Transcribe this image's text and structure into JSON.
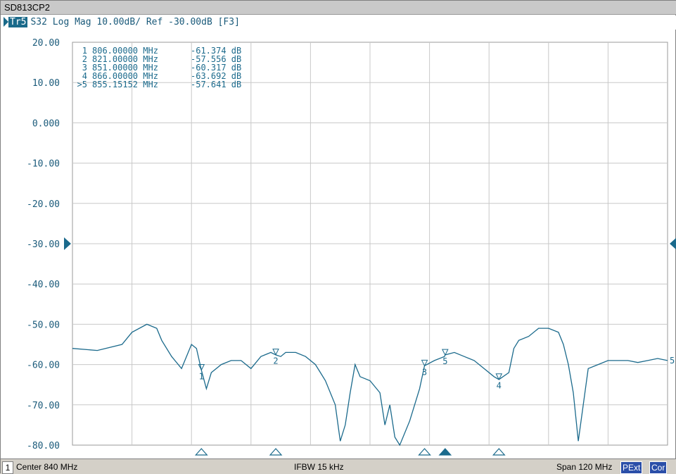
{
  "window": {
    "title": "SD813CP2"
  },
  "trace": {
    "badge": "Tr5",
    "header": "S32 Log Mag 10.00dB/ Ref -30.00dB [F3]"
  },
  "chart_data": {
    "type": "line",
    "title": "",
    "xlabel": "",
    "ylabel": "",
    "x_unit": "MHz",
    "y_unit": "dB",
    "xlim": [
      780,
      900
    ],
    "ylim": [
      -80,
      20
    ],
    "y_ticks": [
      "20.00",
      "10.00",
      "0.000",
      "-10.00",
      "-20.00",
      "-30.00",
      "-40.00",
      "-50.00",
      "-60.00",
      "-70.00",
      "-80.00"
    ],
    "reference_level": -30,
    "grid": true,
    "trace_color": "#1b6a8c",
    "series": [
      {
        "x": [
          780,
          785,
          790,
          792,
          795,
          797,
          798,
          800,
          802,
          804,
          805,
          806,
          807,
          808,
          810,
          812,
          814,
          816,
          818,
          820,
          821,
          822,
          823,
          825,
          827,
          829,
          830,
          831,
          833,
          834,
          835,
          836,
          837,
          838,
          840,
          842,
          843,
          844,
          845,
          846,
          848,
          850,
          851,
          853,
          855,
          855.15,
          857,
          859,
          861,
          863,
          865,
          866,
          868,
          869,
          870,
          872,
          874,
          876,
          878,
          879,
          880,
          881,
          882,
          884,
          886,
          888,
          890,
          892,
          894,
          896,
          898,
          900
        ],
        "y": [
          -56,
          -56.5,
          -55,
          -52,
          -50,
          -51,
          -54,
          -58,
          -61,
          -55,
          -56,
          -61.4,
          -66,
          -62,
          -60,
          -59,
          -59,
          -61,
          -58,
          -57,
          -57.6,
          -58,
          -57,
          -57,
          -58,
          -60,
          -62,
          -64,
          -70,
          -79,
          -75,
          -67,
          -60,
          -63,
          -64,
          -67,
          -75,
          -70,
          -78,
          -80,
          -74,
          -66,
          -60.3,
          -59,
          -58,
          -57.6,
          -57,
          -58,
          -59,
          -61,
          -63,
          -63.7,
          -62,
          -56,
          -54,
          -53,
          -51,
          -51,
          -52,
          -55,
          -60,
          -67,
          -79,
          -61,
          -60,
          -59,
          -59,
          -59,
          -59.5,
          -59,
          -58.5,
          -59
        ]
      }
    ],
    "markers": [
      {
        "label": "1",
        "freq": "806.00000 MHz",
        "value": "-61.374 dB",
        "x": 806,
        "y": -61.374,
        "active": false
      },
      {
        "label": "2",
        "freq": "821.00000 MHz",
        "value": "-57.556 dB",
        "x": 821,
        "y": -57.556,
        "active": false
      },
      {
        "label": "3",
        "freq": "851.00000 MHz",
        "value": "-60.317 dB",
        "x": 851,
        "y": -60.317,
        "active": false
      },
      {
        "label": "4",
        "freq": "866.00000 MHz",
        "value": "-63.692 dB",
        "x": 866,
        "y": -63.692,
        "active": false
      },
      {
        "label": ">5",
        "freq": "855.15152 MHz",
        "value": "-57.641 dB",
        "x": 855.15152,
        "y": -57.641,
        "active": true
      }
    ]
  },
  "status": {
    "channel": "1",
    "center": "Center 840 MHz",
    "ifbw": "IFBW 15 kHz",
    "span": "Span 120 MHz",
    "tag_pext": "PExt",
    "tag_cor": "Cor"
  }
}
